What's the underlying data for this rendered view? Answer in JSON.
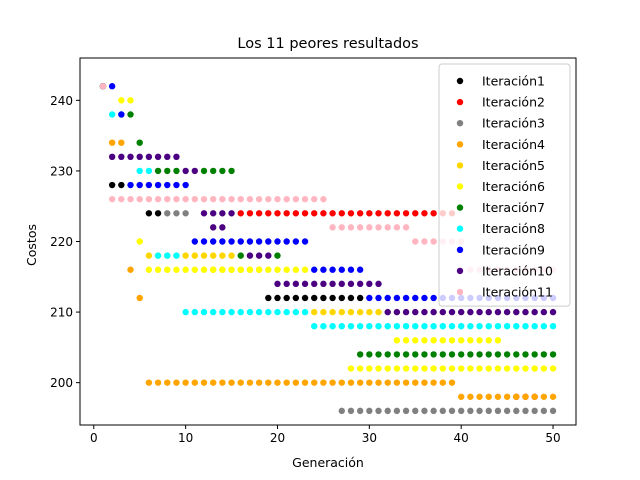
{
  "chart_data": {
    "type": "scatter",
    "title": "Los 11 peores resultados",
    "xlabel": "Generación",
    "ylabel": "Costos",
    "xlim": [
      -1.5,
      52.5
    ],
    "ylim": [
      194,
      246
    ],
    "xticks": [
      0,
      10,
      20,
      30,
      40,
      50
    ],
    "yticks": [
      200,
      210,
      220,
      230,
      240
    ],
    "grid": false,
    "legend_position": "top-right",
    "series": [
      {
        "name": "Iteración1",
        "color": "#000000",
        "segments": [
          {
            "y": 242,
            "from": 1,
            "to": 1
          },
          {
            "y": 228,
            "from": 2,
            "to": 3
          },
          {
            "y": 224,
            "from": 6,
            "to": 7
          },
          {
            "y": 212,
            "from": 19,
            "to": 29
          }
        ]
      },
      {
        "name": "Iteración2",
        "color": "#ff0000",
        "segments": [
          {
            "y": 242,
            "from": 1,
            "to": 1
          },
          {
            "y": 224,
            "from": 16,
            "to": 39
          },
          {
            "y": 198,
            "from": 46,
            "to": 48
          }
        ]
      },
      {
        "name": "Iteración3",
        "color": "#808080",
        "segments": [
          {
            "y": 242,
            "from": 1,
            "to": 1
          },
          {
            "y": 224,
            "from": 8,
            "to": 10
          },
          {
            "y": 196,
            "from": 27,
            "to": 50
          }
        ]
      },
      {
        "name": "Iteración4",
        "color": "#ffa500",
        "segments": [
          {
            "y": 242,
            "from": 1,
            "to": 1
          },
          {
            "y": 234,
            "from": 2,
            "to": 3
          },
          {
            "y": 216,
            "from": 4,
            "to": 4
          },
          {
            "y": 212,
            "from": 5,
            "to": 5
          },
          {
            "y": 200,
            "from": 6,
            "to": 39
          },
          {
            "y": 198,
            "from": 40,
            "to": 50
          }
        ]
      },
      {
        "name": "Iteración5",
        "color": "#ffd700",
        "segments": [
          {
            "y": 242,
            "from": 1,
            "to": 1
          },
          {
            "y": 218,
            "from": 6,
            "to": 15
          },
          {
            "y": 216,
            "from": 13,
            "to": 18
          },
          {
            "y": 210,
            "from": 24,
            "to": 31
          }
        ]
      },
      {
        "name": "Iteración6",
        "color": "#ffff00",
        "segments": [
          {
            "y": 242,
            "from": 1,
            "to": 1
          },
          {
            "y": 240,
            "from": 3,
            "to": 4
          },
          {
            "y": 220,
            "from": 5,
            "to": 5
          },
          {
            "y": 216,
            "from": 6,
            "to": 23
          },
          {
            "y": 206,
            "from": 33,
            "to": 44
          },
          {
            "y": 202,
            "from": 28,
            "to": 50
          }
        ]
      },
      {
        "name": "Iteración7",
        "color": "#008000",
        "segments": [
          {
            "y": 242,
            "from": 1,
            "to": 1
          },
          {
            "y": 238,
            "from": 4,
            "to": 4
          },
          {
            "y": 234,
            "from": 5,
            "to": 5
          },
          {
            "y": 230,
            "from": 7,
            "to": 9
          },
          {
            "y": 230,
            "from": 12,
            "to": 15
          },
          {
            "y": 218,
            "from": 16,
            "to": 16
          },
          {
            "y": 218,
            "from": 20,
            "to": 20
          },
          {
            "y": 204,
            "from": 29,
            "to": 50
          }
        ]
      },
      {
        "name": "Iteración8",
        "color": "#00ffff",
        "segments": [
          {
            "y": 242,
            "from": 1,
            "to": 1
          },
          {
            "y": 238,
            "from": 2,
            "to": 3
          },
          {
            "y": 230,
            "from": 5,
            "to": 6
          },
          {
            "y": 218,
            "from": 7,
            "to": 9
          },
          {
            "y": 210,
            "from": 10,
            "to": 23
          },
          {
            "y": 208,
            "from": 24,
            "to": 50
          }
        ]
      },
      {
        "name": "Iteración9",
        "color": "#0000ff",
        "segments": [
          {
            "y": 242,
            "from": 2,
            "to": 2
          },
          {
            "y": 238,
            "from": 3,
            "to": 3
          },
          {
            "y": 228,
            "from": 4,
            "to": 10
          },
          {
            "y": 220,
            "from": 11,
            "to": 23
          },
          {
            "y": 216,
            "from": 24,
            "to": 29
          },
          {
            "y": 212,
            "from": 30,
            "to": 50
          }
        ]
      },
      {
        "name": "Iteración10",
        "color": "#4b0082",
        "segments": [
          {
            "y": 242,
            "from": 1,
            "to": 1
          },
          {
            "y": 232,
            "from": 2,
            "to": 9
          },
          {
            "y": 230,
            "from": 10,
            "to": 11
          },
          {
            "y": 224,
            "from": 12,
            "to": 15
          },
          {
            "y": 222,
            "from": 13,
            "to": 14
          },
          {
            "y": 218,
            "from": 17,
            "to": 19
          },
          {
            "y": 214,
            "from": 20,
            "to": 31
          },
          {
            "y": 210,
            "from": 32,
            "to": 50
          }
        ]
      },
      {
        "name": "Iteración11",
        "color": "#ffb6c1",
        "segments": [
          {
            "y": 242,
            "from": 1,
            "to": 1
          },
          {
            "y": 226,
            "from": 2,
            "to": 25
          },
          {
            "y": 222,
            "from": 26,
            "to": 34
          },
          {
            "y": 220,
            "from": 35,
            "to": 40
          },
          {
            "y": 216,
            "from": 41,
            "to": 50
          }
        ]
      }
    ]
  }
}
